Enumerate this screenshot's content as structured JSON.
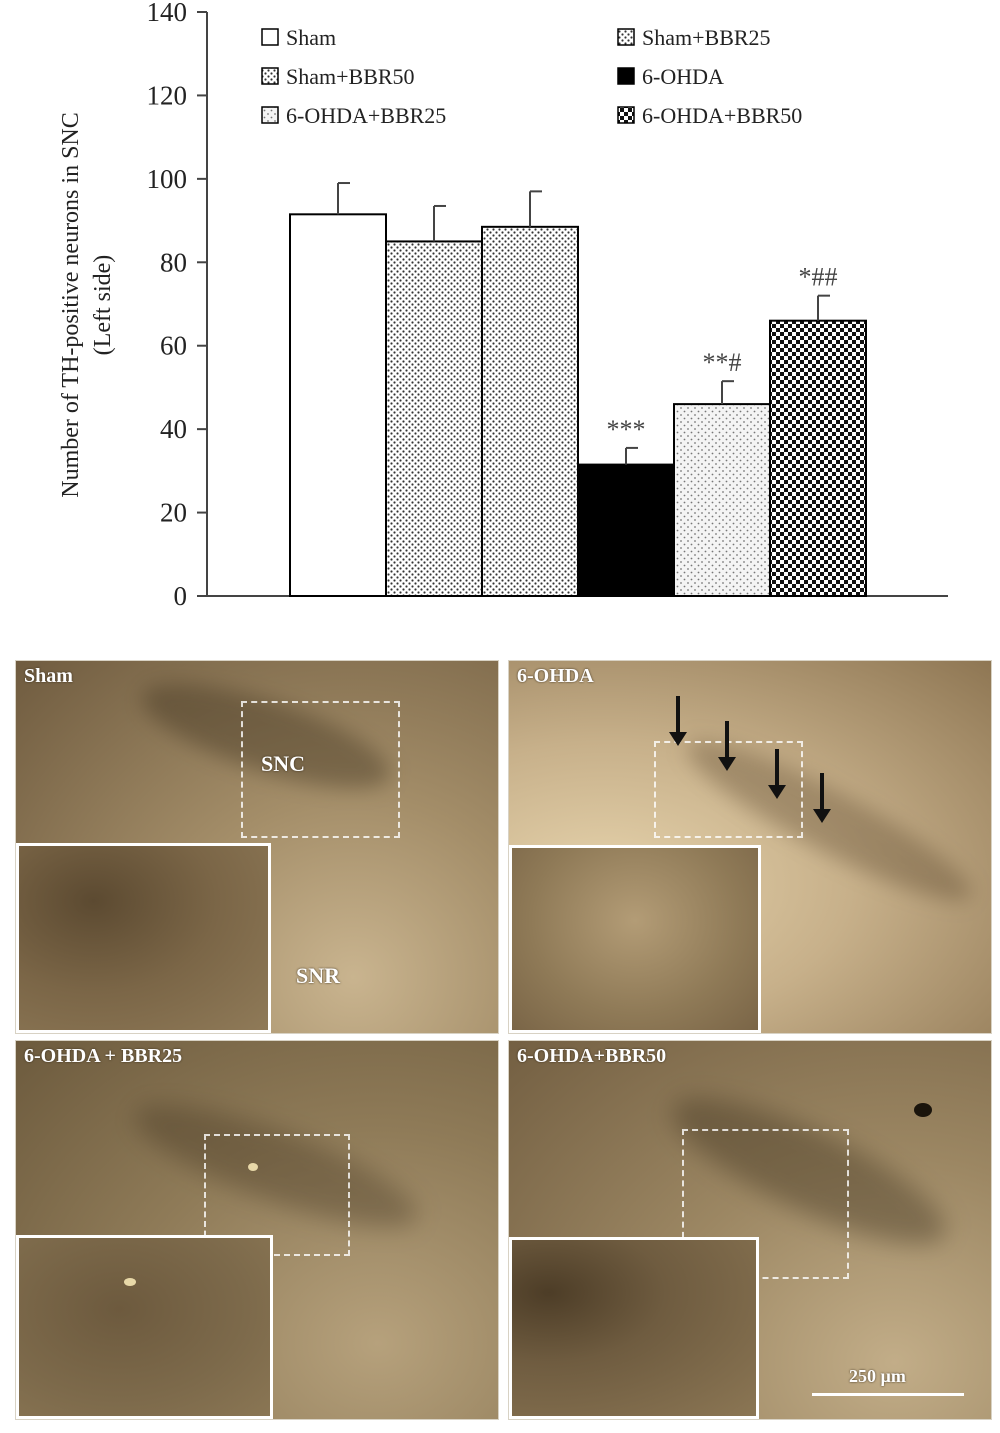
{
  "chart_data": {
    "type": "bar",
    "ylabel": "Number of TH-positive neurons in SNC (Left side)",
    "ylabel_lines": [
      "Number of TH-positive neurons in SNC",
      "(Left side)"
    ],
    "ylim": [
      0,
      140
    ],
    "yticks": [
      0,
      20,
      40,
      60,
      80,
      100,
      120,
      140
    ],
    "grid": false,
    "legend_position": "top",
    "categories": [
      "Sham",
      "Sham+BBR25",
      "Sham+BBR50",
      "6-OHDA",
      "6-OHDA+BBR25",
      "6-OHDA+BBR50"
    ],
    "values": [
      91.5,
      85,
      88.5,
      31.5,
      46,
      66
    ],
    "errors": [
      7.5,
      8.5,
      8.5,
      4,
      5.5,
      6
    ],
    "annotations": [
      "",
      "",
      "",
      "***",
      "**#",
      "*##"
    ],
    "legend": [
      "Sham",
      "Sham+BBR25",
      "Sham+BBR50",
      "6-OHDA",
      "6-OHDA+BBR25",
      "6-OHDA+BBR50"
    ]
  },
  "panels": {
    "sham": {
      "label": "Sham",
      "snc": "SNC",
      "snr": "SNR"
    },
    "ohda": {
      "label": "6-OHDA"
    },
    "ohda_bbr25": {
      "label": "6-OHDA + BBR25"
    },
    "ohda_bbr50": {
      "label": "6-OHDA+BBR50"
    },
    "scale_bar": "250 µm"
  },
  "colors": {
    "tissue_dark": "#6e5a3e",
    "tissue_light": "#b8a482",
    "bar_black": "#000000"
  }
}
